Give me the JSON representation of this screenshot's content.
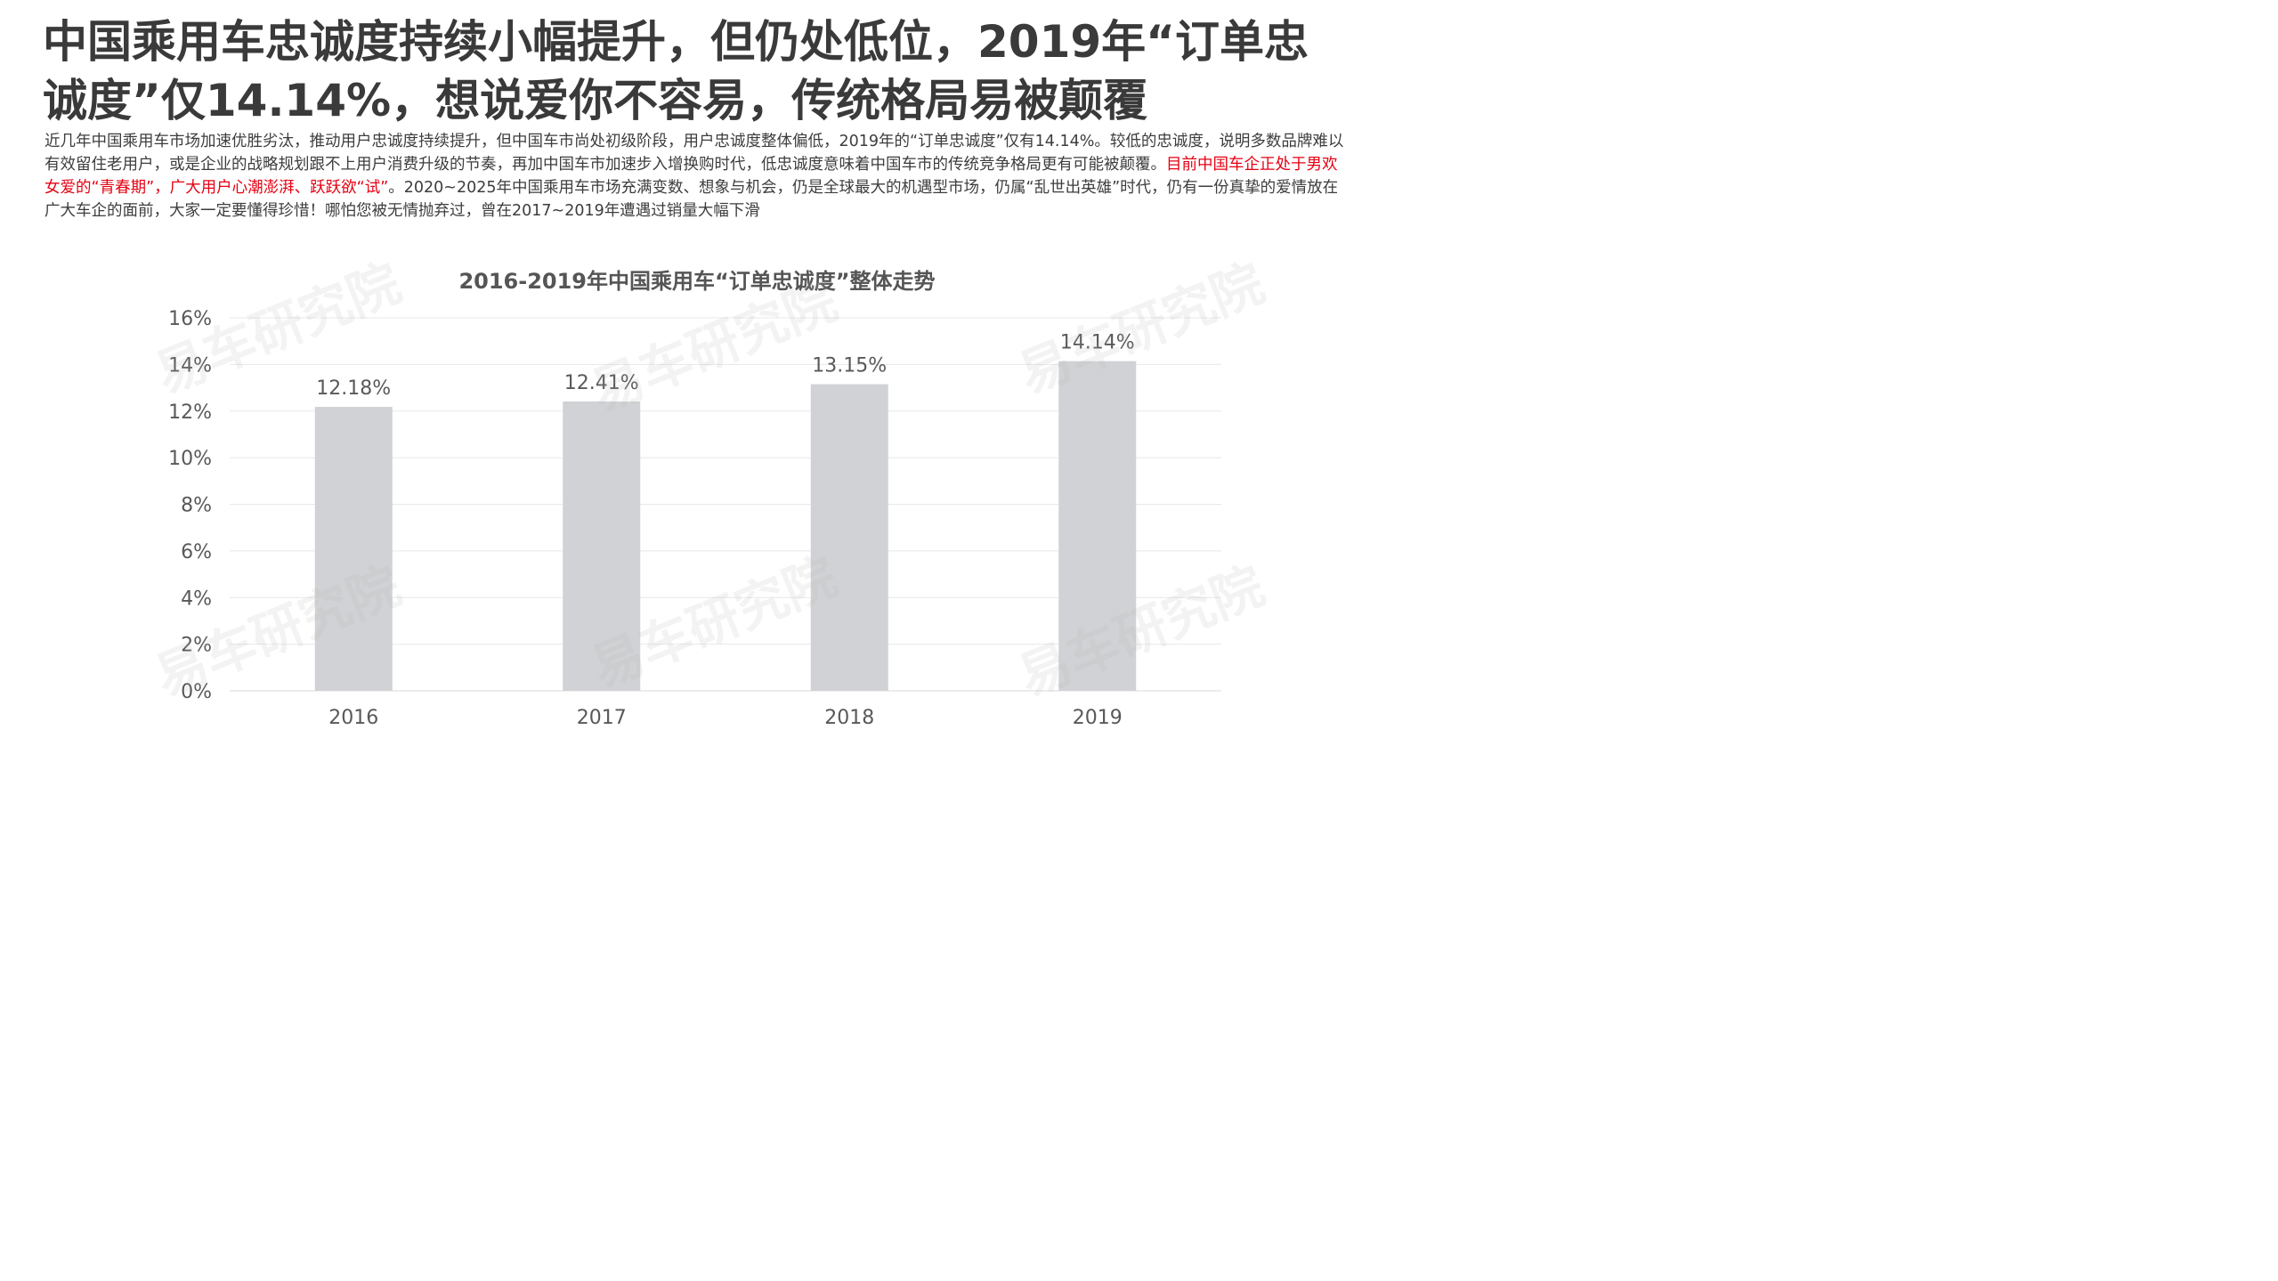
{
  "slide": {
    "headline": "中国乘用车忠诚度持续小幅提升，但仍处低位，2019年“订单忠诚度”仅14.14%，想说爱你不容易，传统格局易被颠覆",
    "summary_part1": "近几年中国乘用车市场加速优胜劣汰，推动用户忠诚度持续提升，但中国车市尚处初级阶段，用户忠诚度整体偏低，2019年的“订单忠诚度”仅有14.14%。较低的忠诚度，说明多数品牌难以有效留住老用户，或是企业的战略规划跟不上用户消费升级的节奏，再加中国车市加速步入增换购时代，低忠诚度意味着中国车市的传统竞争格局更有可能被颠覆。",
    "summary_highlight": "目前中国车企正处于男欢女爱的“青春期”，广大用户心潮澎湃、跃跃欲“试”",
    "summary_part2": "。2020~2025年中国乘用车市场充满变数、想象与机会，仍是全球最大的机遇型市场，仍属“乱世出英雄”时代，仍有一份真挚的爱情放在广大车企的面前，大家一定要懂得珍惜！哪怕您被无情抛弃过，曾在2017~2019年遭遇过销量大幅下滑",
    "watermark_text": "易车研究院"
  },
  "colors": {
    "bar": "#d0d2d5",
    "highlight": "#e60012",
    "axis_text": "#595959",
    "gridline": "#e8e8e8"
  },
  "chart_data": {
    "type": "bar",
    "title": "2016-2019年中国乘用车“订单忠诚度”整体走势",
    "categories": [
      "2016",
      "2017",
      "2018",
      "2019"
    ],
    "values": [
      12.18,
      12.41,
      13.15,
      14.14
    ],
    "value_labels": [
      "12.18%",
      "12.41%",
      "13.15%",
      "14.14%"
    ],
    "xlabel": "",
    "ylabel": "",
    "ylim": [
      0,
      16
    ],
    "y_ticks": [
      "0%",
      "2%",
      "4%",
      "6%",
      "8%",
      "10%",
      "12%",
      "14%",
      "16%"
    ],
    "grid": true,
    "legend": "none"
  }
}
